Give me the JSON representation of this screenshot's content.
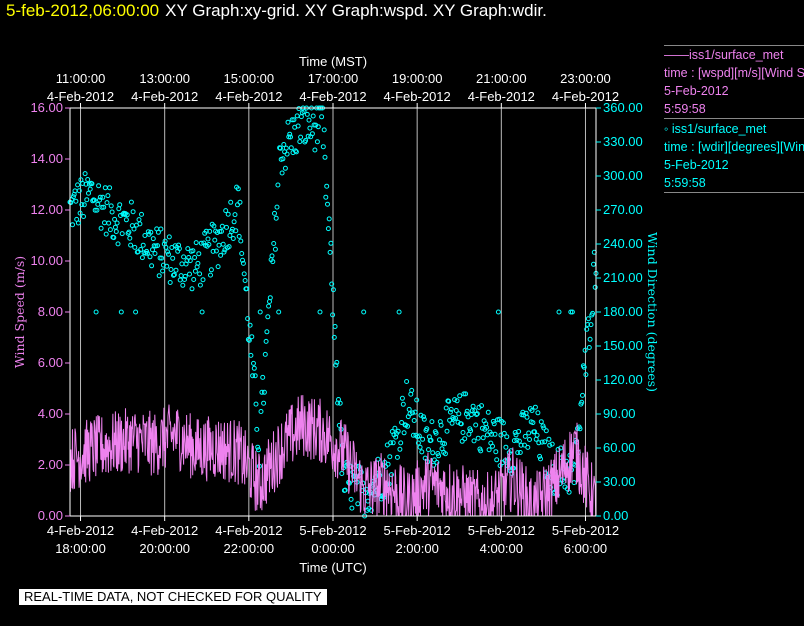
{
  "header": {
    "timestamp": "5-feb-2012,06:00:00",
    "graphs": "XY Graph:xy-grid.  XY Graph:wspd.  XY Graph:wdir."
  },
  "legend": [
    {
      "series": "——iss1/surface_met",
      "field": "time : [wspd][m/s][Wind Speed]",
      "date": "5-Feb-2012",
      "time": "5:59:58",
      "color": "#ee82ee"
    },
    {
      "series": "◦ iss1/surface_met",
      "field": "time : [wdir][degrees][Wind Direction]",
      "date": "5-Feb-2012",
      "time": "5:59:58",
      "color": "#00ffff"
    }
  ],
  "banner": "REAL-TIME DATA, NOT CHECKED FOR QUALITY",
  "chart_data": {
    "type": "line",
    "x_range_utc": [
      "2012-02-04T17:45:00Z",
      "2012-02-05T06:15:00Z"
    ],
    "top_axis": {
      "title": "Time (MST)",
      "ticks": [
        {
          "time": "11:00:00",
          "date": "4-Feb-2012"
        },
        {
          "time": "13:00:00",
          "date": "4-Feb-2012"
        },
        {
          "time": "15:00:00",
          "date": "4-Feb-2012"
        },
        {
          "time": "17:00:00",
          "date": "4-Feb-2012"
        },
        {
          "time": "19:00:00",
          "date": "4-Feb-2012"
        },
        {
          "time": "21:00:00",
          "date": "4-Feb-2012"
        },
        {
          "time": "23:00:00",
          "date": "4-Feb-2012"
        }
      ]
    },
    "bottom_axis": {
      "title": "Time (UTC)",
      "ticks": [
        {
          "date": "4-Feb-2012",
          "time": "18:00:00"
        },
        {
          "date": "4-Feb-2012",
          "time": "20:00:00"
        },
        {
          "date": "4-Feb-2012",
          "time": "22:00:00"
        },
        {
          "date": "5-Feb-2012",
          "time": "0:00:00"
        },
        {
          "date": "5-Feb-2012",
          "time": "2:00:00"
        },
        {
          "date": "5-Feb-2012",
          "time": "4:00:00"
        },
        {
          "date": "5-Feb-2012",
          "time": "6:00:00"
        }
      ]
    },
    "left_axis": {
      "title": "Wind Speed (m/s)",
      "ylim": [
        0,
        16
      ],
      "ticks": [
        "0.00",
        "2.00",
        "4.00",
        "6.00",
        "8.00",
        "10.00",
        "12.00",
        "14.00",
        "16.00"
      ],
      "color": "#ee82ee"
    },
    "right_axis": {
      "title": "Wind Direction (degrees)",
      "ylim": [
        0,
        360
      ],
      "ticks": [
        "0.00",
        "30.00",
        "60.00",
        "90.00",
        "120.00",
        "150.00",
        "180.00",
        "210.00",
        "240.00",
        "270.00",
        "300.00",
        "330.00",
        "360.00"
      ],
      "color": "#00ffff"
    },
    "grid": "vertical",
    "series": [
      {
        "name": "iss1/surface_met wspd",
        "style": "line",
        "color": "#ee82ee",
        "axis": "left",
        "hours_since_1745_utc": [
          0.0,
          0.5,
          1.0,
          1.5,
          2.0,
          2.5,
          3.0,
          3.5,
          4.0,
          4.5,
          5.0,
          5.5,
          6.0,
          6.5,
          7.0,
          7.5,
          8.0,
          8.5,
          9.0,
          9.5,
          10.0,
          10.5,
          11.0,
          11.5,
          12.0,
          12.5
        ],
        "values": [
          2.2,
          2.6,
          2.8,
          3.0,
          2.8,
          3.2,
          2.6,
          2.7,
          2.5,
          1.2,
          2.6,
          3.6,
          3.3,
          2.5,
          1.0,
          1.3,
          0.5,
          1.3,
          1.0,
          0.6,
          0.4,
          1.5,
          0.3,
          1.2,
          2.6,
          0.4
        ]
      },
      {
        "name": "iss1/surface_met wdir",
        "style": "scatter",
        "color": "#00ffff",
        "axis": "right",
        "hours_since_1745_utc": [
          0.0,
          0.5,
          1.0,
          1.5,
          2.0,
          2.5,
          3.0,
          3.5,
          4.0,
          4.5,
          5.0,
          5.5,
          6.0,
          6.5,
          7.0,
          7.5,
          8.0,
          8.5,
          9.0,
          9.5,
          10.0,
          10.5,
          11.0,
          11.5,
          12.0,
          12.5
        ],
        "values": [
          270,
          285,
          265,
          255,
          235,
          225,
          220,
          240,
          275,
          60,
          320,
          345,
          345,
          30,
          20,
          40,
          100,
          60,
          80,
          90,
          70,
          60,
          80,
          40,
          40,
          230
        ]
      }
    ]
  }
}
